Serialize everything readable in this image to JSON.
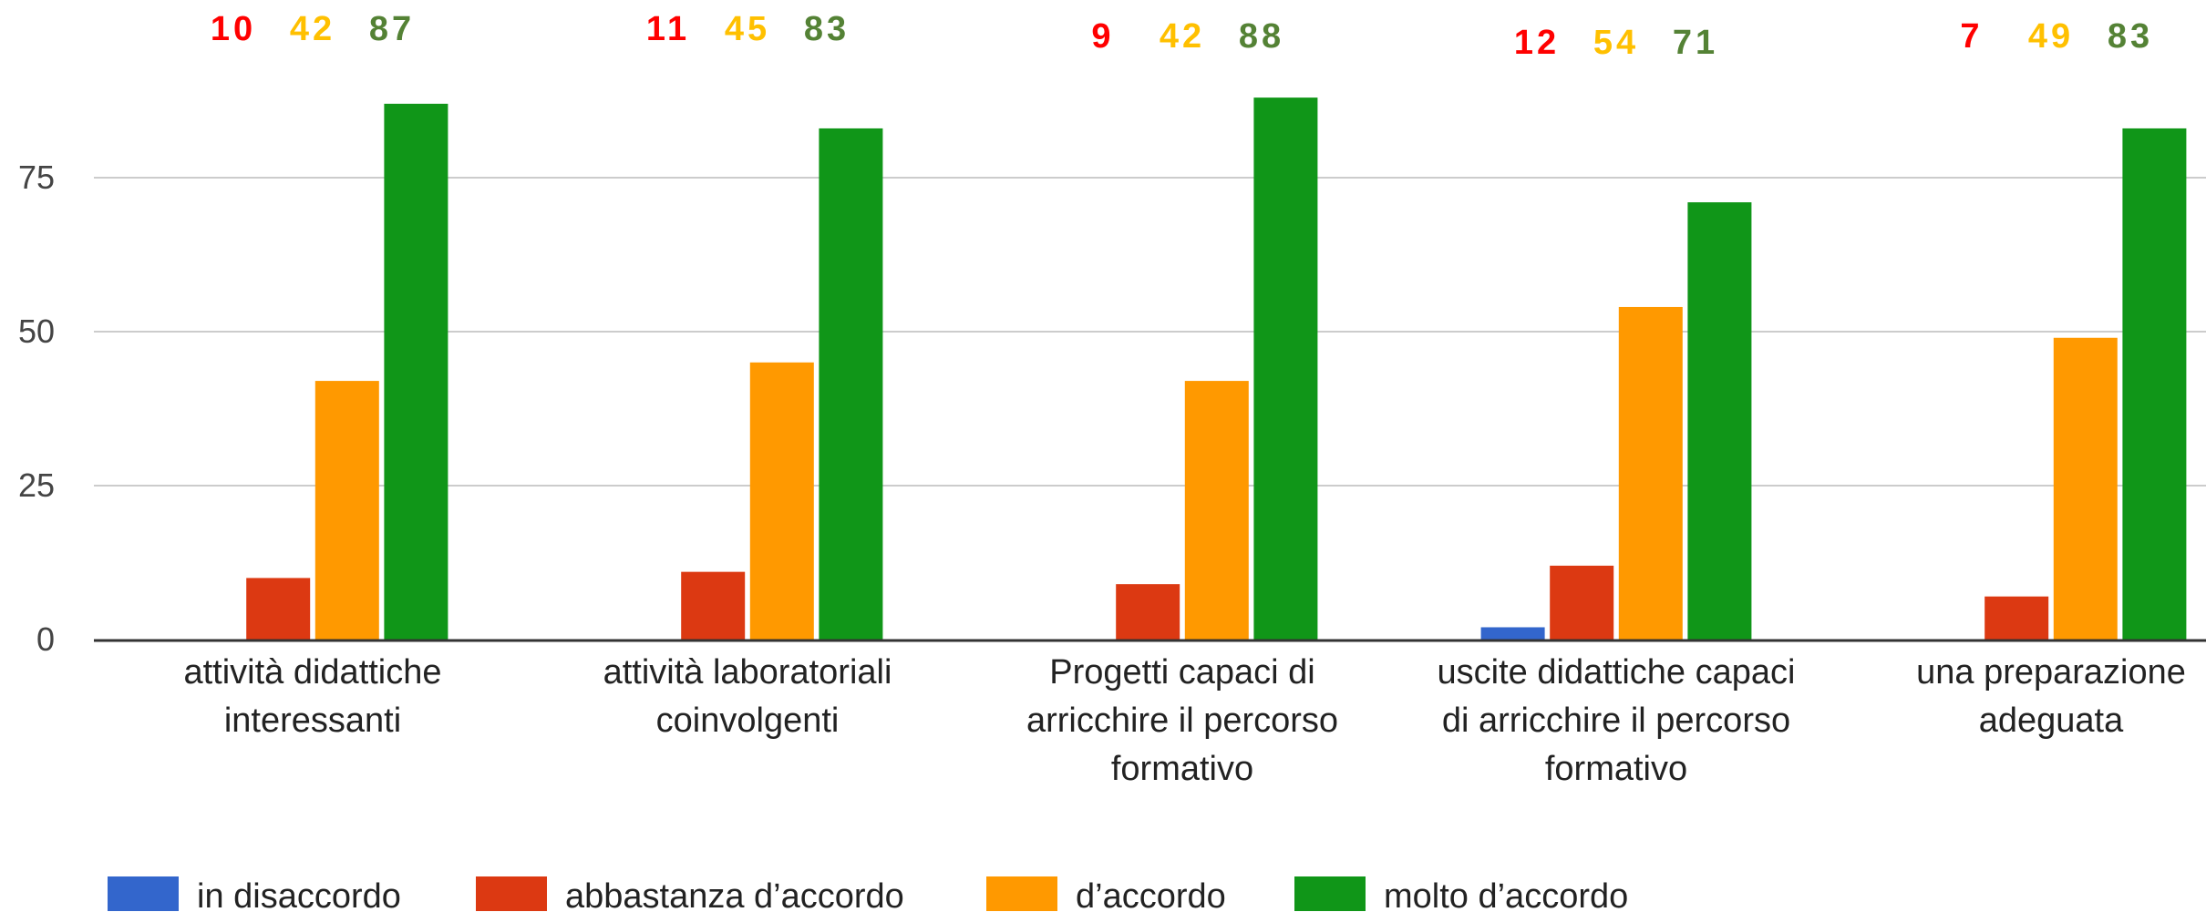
{
  "chart_data": {
    "type": "bar",
    "categories": [
      [
        "attività didattiche",
        "interessanti"
      ],
      [
        "attività laboratoriali",
        "coinvolgenti"
      ],
      [
        "Progetti capaci di",
        "arricchire il percorso",
        "formativo"
      ],
      [
        "uscite didattiche capaci",
        "di arricchire il percorso",
        "formativo"
      ],
      [
        "una preparazione",
        "adeguata"
      ]
    ],
    "series": [
      {
        "name": "in disaccordo",
        "color": "#3366cc",
        "values": [
          0,
          0,
          0,
          2,
          0
        ]
      },
      {
        "name": "abbastanza d’accordo",
        "color": "#dc3912",
        "values": [
          10,
          11,
          9,
          12,
          7
        ]
      },
      {
        "name": "d’accordo",
        "color": "#ff9900",
        "values": [
          42,
          45,
          42,
          54,
          49
        ]
      },
      {
        "name": "molto d’accordo",
        "color": "#109618",
        "values": [
          87,
          83,
          88,
          71,
          83
        ]
      }
    ],
    "annotations": [
      {
        "labels": [
          "10",
          "42",
          "87"
        ]
      },
      {
        "labels": [
          "11",
          "45",
          "83"
        ]
      },
      {
        "labels": [
          "9",
          "42",
          "88"
        ]
      },
      {
        "labels": [
          "12",
          "54",
          "71"
        ]
      },
      {
        "labels": [
          "7",
          "49",
          "83"
        ]
      }
    ],
    "annotation_colors": [
      "#ff0000",
      "#ffc000",
      "#548235"
    ],
    "yticks": [
      "0",
      "25",
      "50",
      "75"
    ],
    "ylim": [
      0,
      100
    ],
    "grid": true,
    "legend_position": "bottom-left"
  }
}
